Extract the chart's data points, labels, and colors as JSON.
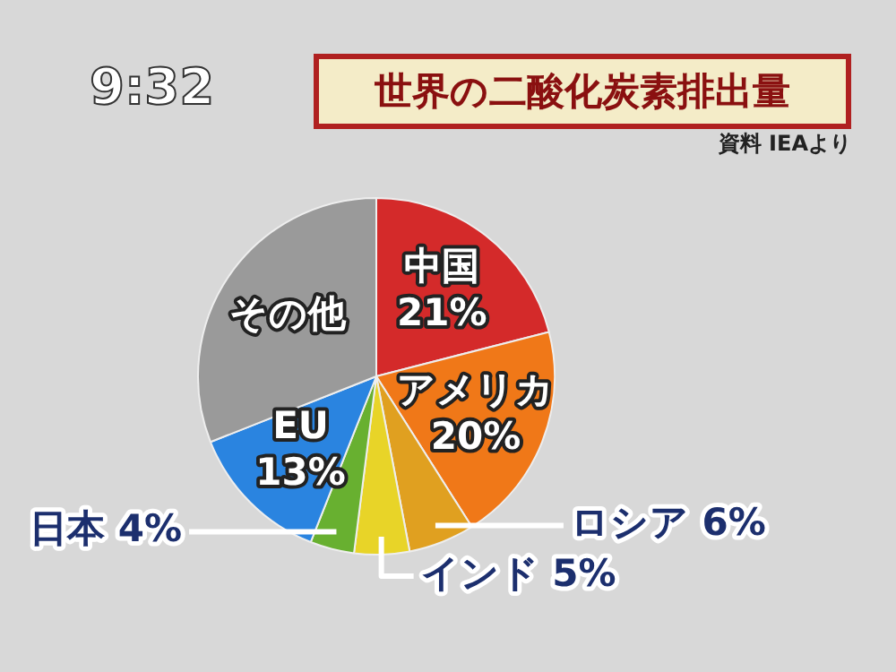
{
  "chart_data": {
    "type": "pie",
    "title": "世界の二酸化炭素排出量",
    "subtitle": "資料 IEAより",
    "annotations": [
      "9:32"
    ],
    "categories": [
      "中国",
      "アメリカ",
      "ロシア",
      "インド",
      "日本",
      "EU",
      "その他"
    ],
    "values": [
      21,
      20,
      6,
      5,
      4,
      13,
      31
    ],
    "value_labels": [
      "21%",
      "20%",
      "6%",
      "5%",
      "4%",
      "13%",
      null
    ],
    "colors": [
      "#d42a2a",
      "#f07818",
      "#e0a020",
      "#e8d428",
      "#68b030",
      "#2a84e0",
      "#9a9a9a"
    ],
    "legend": false
  }
}
